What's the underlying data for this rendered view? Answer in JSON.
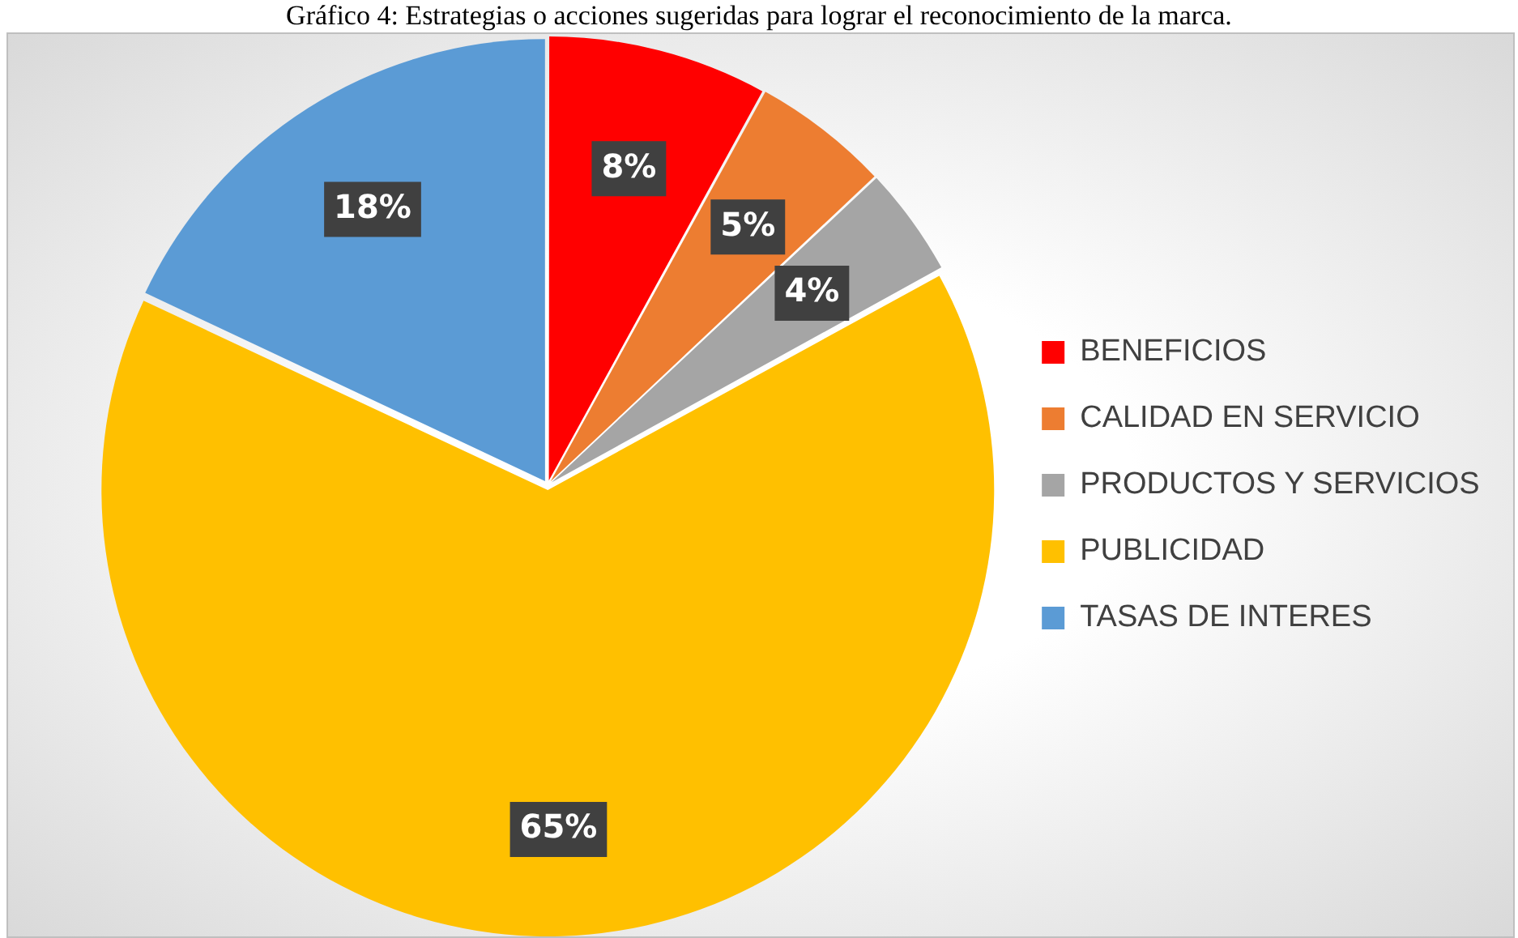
{
  "chart_data": {
    "type": "pie",
    "title": "Gráfico 4: Estrategias o acciones sugeridas para lograr el reconocimiento de la marca.",
    "categories": [
      "BENEFICIOS",
      "CALIDAD EN SERVICIO",
      "PRODUCTOS Y SERVICIOS",
      "PUBLICIDAD",
      "TASAS DE INTERES"
    ],
    "values": [
      8,
      5,
      4,
      65,
      18
    ],
    "colors": [
      "#ff0000",
      "#ed7d31",
      "#a5a5a5",
      "#ffc000",
      "#5b9bd5"
    ],
    "value_labels": [
      "8%",
      "5%",
      "4%",
      "65%",
      "18%"
    ],
    "legend": "right"
  }
}
